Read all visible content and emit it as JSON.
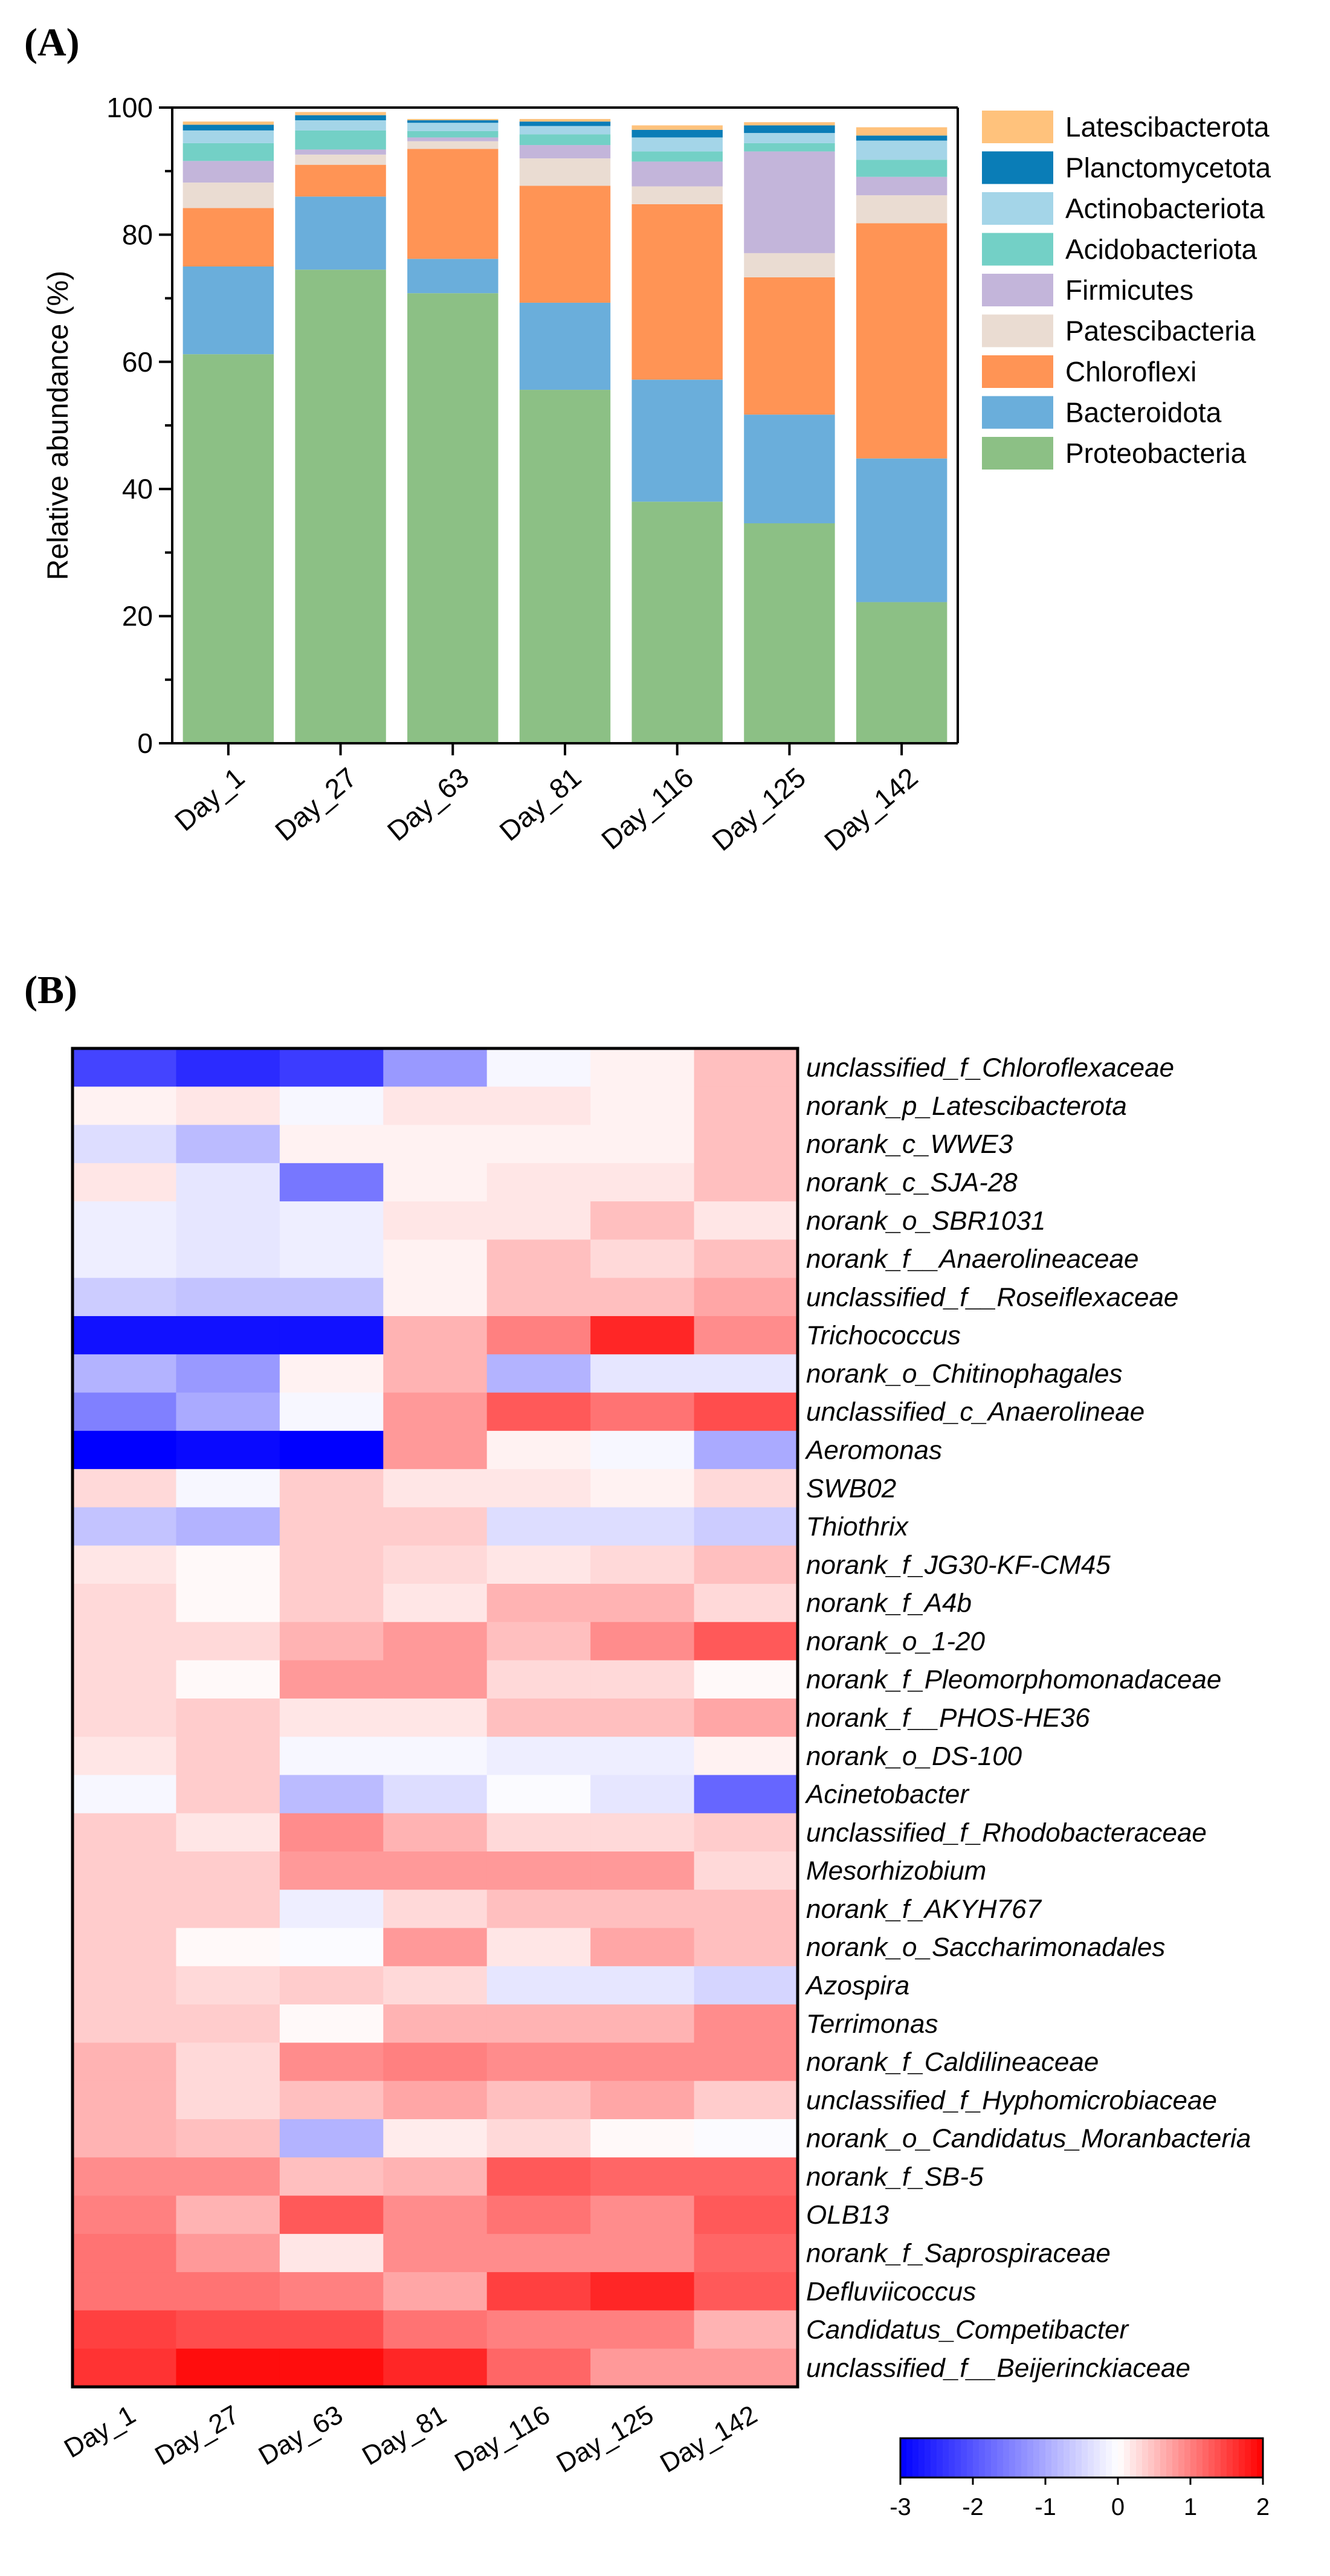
{
  "chart_data": [
    {
      "panel": "(A)",
      "type": "bar",
      "stacked": true,
      "xlabel": "",
      "ylabel": "Relative abundance (%)",
      "ylim": [
        0,
        100
      ],
      "yticks": [
        0,
        20,
        40,
        60,
        80,
        100
      ],
      "legend_position": "right",
      "categories": [
        "Day_1",
        "Day_27",
        "Day_63",
        "Day_81",
        "Day_116",
        "Day_125",
        "Day_142"
      ],
      "series": [
        {
          "name": "Proteobacteria",
          "color": "#8CC085",
          "values": [
            61.2,
            74.5,
            70.8,
            55.6,
            38.0,
            34.6,
            22.2
          ]
        },
        {
          "name": "Bacteroidota",
          "color": "#6AAEDB",
          "values": [
            13.8,
            11.5,
            5.4,
            13.7,
            19.2,
            17.1,
            22.6
          ]
        },
        {
          "name": "Chloroflexi",
          "color": "#FF9455",
          "values": [
            9.2,
            5.0,
            17.3,
            18.4,
            27.6,
            21.6,
            37.0
          ]
        },
        {
          "name": "Patescibacteria",
          "color": "#EADCD2",
          "values": [
            4.0,
            1.6,
            1.2,
            4.3,
            2.8,
            3.8,
            4.4
          ]
        },
        {
          "name": "Firmicutes",
          "color": "#C3B5DA",
          "values": [
            3.4,
            0.8,
            0.6,
            2.1,
            3.9,
            16.0,
            2.9
          ]
        },
        {
          "name": "Acidobacteriota",
          "color": "#73D0C6",
          "values": [
            2.8,
            3.0,
            1.0,
            1.7,
            1.6,
            1.3,
            2.7
          ]
        },
        {
          "name": "Actinobacteriota",
          "color": "#A4D5E8",
          "values": [
            2.0,
            1.6,
            1.3,
            1.3,
            2.2,
            1.6,
            3.0
          ]
        },
        {
          "name": "Planctomycetota",
          "color": "#0A7DB7",
          "values": [
            0.9,
            0.8,
            0.4,
            0.7,
            1.2,
            1.2,
            0.8
          ]
        },
        {
          "name": "Latescibacterota",
          "color": "#FFC27C",
          "values": [
            0.5,
            0.5,
            0.2,
            0.4,
            0.7,
            0.5,
            1.3
          ]
        }
      ]
    },
    {
      "panel": "(B)",
      "type": "heatmap",
      "columns": [
        "Day_1",
        "Day_27",
        "Day_63",
        "Day_81",
        "Day_116",
        "Day_125",
        "Day_142"
      ],
      "rows": [
        "unclassified_f_Chloroflexaceae",
        "norank_p_Latescibacterota",
        "norank_c_WWE3",
        "norank_c_SJA-28",
        "norank_o_SBR1031",
        "norank_f__Anaerolineaceae",
        "unclassified_f__Roseiflexaceae",
        "Trichococcus",
        "norank_o_Chitinophagales",
        "unclassified_c_Anaerolineae",
        "Aeromonas",
        "SWB02",
        "Thiothrix",
        "norank_f_JG30-KF-CM45",
        "norank_f_A4b",
        "norank_o_1-20",
        "norank_f_Pleomorphomonadaceae",
        "norank_f__PHOS-HE36",
        "norank_o_DS-100",
        "Acinetobacter",
        "unclassified_f_Rhodobacteraceae",
        "Mesorhizobium",
        "norank_f_AKYH767",
        "norank_o_Saccharimonadales",
        "Azospira",
        "Terrimonas",
        "norank_f_Caldilineaceae",
        "unclassified_f_Hyphomicrobiaceae",
        "norank_o_Candidatus_Moranbacteria",
        "norank_f_SB-5",
        "OLB13",
        "norank_f_Saprospiraceae",
        "Defluviicoccus",
        "Candidatus_Competibacter",
        "unclassified_f__Beijerinckiaceae"
      ],
      "values": [
        [
          -2.2,
          -2.5,
          -2.3,
          -1.2,
          -0.1,
          0.1,
          0.5
        ],
        [
          0.1,
          0.2,
          -0.1,
          0.2,
          0.2,
          0.1,
          0.5
        ],
        [
          -0.4,
          -0.8,
          0.1,
          0.1,
          0.1,
          0.1,
          0.5
        ],
        [
          0.2,
          -0.3,
          -1.6,
          0.1,
          0.2,
          0.2,
          0.5
        ],
        [
          -0.2,
          -0.3,
          -0.2,
          0.2,
          0.2,
          0.5,
          0.2
        ],
        [
          -0.2,
          -0.3,
          -0.2,
          0.1,
          0.5,
          0.3,
          0.5
        ],
        [
          -0.6,
          -0.7,
          -0.7,
          0.1,
          0.5,
          0.5,
          0.7
        ],
        [
          -2.8,
          -2.8,
          -2.8,
          0.6,
          1.0,
          1.7,
          0.9
        ],
        [
          -0.9,
          -1.2,
          0.1,
          0.6,
          -0.9,
          -0.3,
          -0.3
        ],
        [
          -1.5,
          -1.0,
          -0.1,
          0.8,
          1.3,
          1.1,
          1.4
        ],
        [
          -3.0,
          -2.9,
          -3.0,
          0.8,
          0.1,
          -0.1,
          -1.0
        ],
        [
          0.3,
          -0.1,
          0.4,
          0.2,
          0.2,
          0.1,
          0.3
        ],
        [
          -0.7,
          -0.9,
          0.4,
          0.4,
          -0.4,
          -0.4,
          -0.6
        ],
        [
          0.2,
          0.05,
          0.4,
          0.3,
          0.2,
          0.3,
          0.5
        ],
        [
          0.3,
          0.05,
          0.4,
          0.2,
          0.6,
          0.6,
          0.3
        ],
        [
          0.3,
          0.3,
          0.6,
          0.8,
          0.5,
          0.9,
          1.3
        ],
        [
          0.3,
          0.05,
          0.8,
          0.8,
          0.3,
          0.3,
          0.05
        ],
        [
          0.3,
          0.4,
          0.2,
          0.2,
          0.5,
          0.5,
          0.7
        ],
        [
          0.2,
          0.4,
          -0.1,
          -0.1,
          -0.2,
          -0.2,
          0.1
        ],
        [
          -0.1,
          0.4,
          -0.8,
          -0.4,
          -0.05,
          -0.3,
          -1.8
        ],
        [
          0.4,
          0.2,
          0.9,
          0.6,
          0.3,
          0.3,
          0.4
        ],
        [
          0.4,
          0.4,
          0.8,
          0.8,
          0.8,
          0.8,
          0.3
        ],
        [
          0.4,
          0.4,
          -0.2,
          0.3,
          0.5,
          0.5,
          0.5
        ],
        [
          0.4,
          0.05,
          -0.05,
          0.8,
          0.2,
          0.7,
          0.5
        ],
        [
          0.4,
          0.3,
          0.4,
          0.3,
          -0.3,
          -0.3,
          -0.5
        ],
        [
          0.4,
          0.4,
          0.05,
          0.6,
          0.6,
          0.6,
          0.9
        ],
        [
          0.6,
          0.3,
          0.9,
          1.0,
          0.9,
          0.9,
          0.9
        ],
        [
          0.6,
          0.3,
          0.5,
          0.7,
          0.5,
          0.7,
          0.4
        ],
        [
          0.6,
          0.5,
          -0.9,
          0.15,
          0.3,
          0.05,
          -0.05
        ],
        [
          0.9,
          0.9,
          0.5,
          0.6,
          1.3,
          1.2,
          1.2
        ],
        [
          1.0,
          0.6,
          1.3,
          0.9,
          1.1,
          0.9,
          1.3
        ],
        [
          1.1,
          0.8,
          0.2,
          0.9,
          0.9,
          0.9,
          1.2
        ],
        [
          1.1,
          1.1,
          1.0,
          0.7,
          1.5,
          1.7,
          1.3
        ],
        [
          1.5,
          1.4,
          1.4,
          1.1,
          1.0,
          1.0,
          0.6
        ],
        [
          1.6,
          1.9,
          1.9,
          1.7,
          1.2,
          0.8,
          0.8
        ]
      ],
      "colorbar": {
        "min": -3,
        "max": 2,
        "ticks": [
          -3,
          -2,
          -1,
          0,
          1,
          2
        ],
        "low_color": "#0000FF",
        "mid_color": "#FFFFFF",
        "high_color": "#FF0000"
      }
    }
  ]
}
